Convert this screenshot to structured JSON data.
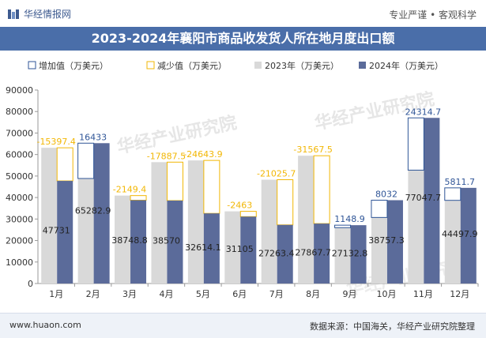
{
  "header": {
    "brand": "华经情报网",
    "tagline": "专业严谨 • 客观科学",
    "title": "2023-2024年襄阳市商品收发货人所在地月度出口额"
  },
  "footer": {
    "website": "www.huaon.com",
    "source": "数据来源：中国海关，华经产业研究院整理"
  },
  "watermark": "华经产业研究院",
  "colors": {
    "increase": "#2f5597",
    "decrease": "#f2b705",
    "y2023": "#d9d9d9",
    "y2024": "#5b6b9a",
    "label_increase": "#2f5597",
    "label_decrease": "#f2b705"
  },
  "chart_data": {
    "type": "bar",
    "categories": [
      "1月",
      "2月",
      "3月",
      "4月",
      "5月",
      "6月",
      "7月",
      "8月",
      "9月",
      "10月",
      "11月",
      "12月"
    ],
    "series": [
      {
        "name": "2023年（万美元）",
        "values": [
          63128.4,
          48849.9,
          40898.2,
          56457.5,
          57258,
          33568,
          48289.1,
          59435.3,
          25983.8,
          30725.3,
          52733,
          38686.2
        ]
      },
      {
        "name": "2024年（万美元）",
        "values": [
          47731,
          65282.9,
          38748.8,
          38570,
          32614.1,
          31105,
          27263.4,
          27867.7,
          27132.8,
          38757.3,
          77047.7,
          44497.9
        ]
      }
    ],
    "change": {
      "labels": [
        "-15397.4",
        "16433",
        "-2149.4",
        "-17887.5",
        "-24643.9",
        "-2463",
        "-21025.7",
        "-31567.5",
        "1148.9",
        "8032",
        "24314.7",
        "5811.7"
      ],
      "directions": [
        "down",
        "up",
        "down",
        "down",
        "down",
        "down",
        "down",
        "down",
        "up",
        "up",
        "up",
        "up"
      ]
    },
    "legend": [
      "增加值（万美元）",
      "减少值（万美元）",
      "2023年（万美元）",
      "2024年（万美元）"
    ],
    "legend_position": "top-left",
    "ylim": [
      0,
      90000
    ],
    "yticks": [
      0,
      10000,
      20000,
      30000,
      40000,
      50000,
      60000,
      70000,
      80000,
      90000
    ],
    "ytick_labels": [
      "0",
      "10000",
      "20000",
      "30000",
      "40000",
      "50000",
      "60000",
      "70000",
      "80000",
      "90000"
    ],
    "grid": false
  }
}
